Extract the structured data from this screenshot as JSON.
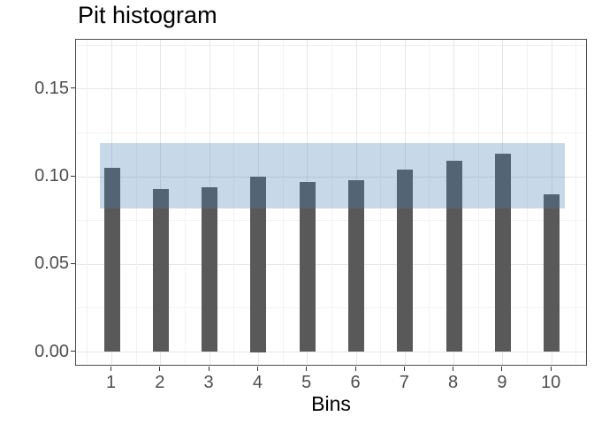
{
  "title": "Pit histogram",
  "chart_data": {
    "type": "bar",
    "title": "Pit histogram",
    "xlabel": "Bins",
    "ylabel": "",
    "categories": [
      "1",
      "2",
      "3",
      "4",
      "5",
      "6",
      "7",
      "8",
      "9",
      "10"
    ],
    "values": [
      0.105,
      0.093,
      0.094,
      0.1,
      0.097,
      0.098,
      0.104,
      0.109,
      0.113,
      0.09
    ],
    "band": {
      "lower": 0.082,
      "upper": 0.119,
      "color_rgba": "rgba(70,130,180,0.30)"
    },
    "bar_color": "#595959",
    "yticks": [
      0,
      0.05,
      0.1,
      0.15
    ],
    "ytick_labels": [
      "0.00",
      "0.05",
      "0.10",
      "0.15"
    ],
    "yticks_minor": [
      0.025,
      0.075,
      0.125,
      0.175
    ],
    "ylim": [
      0,
      0.178
    ],
    "grid": "on",
    "legend": "none"
  },
  "colors": {
    "background": "#ffffff",
    "panel_border": "#4d4d4d",
    "grid_major": "#e6e6e6",
    "grid_minor": "#f2f2f2",
    "axis_text": "#4d4d4d",
    "tick_mark": "#333333",
    "title_text": "#000000"
  }
}
